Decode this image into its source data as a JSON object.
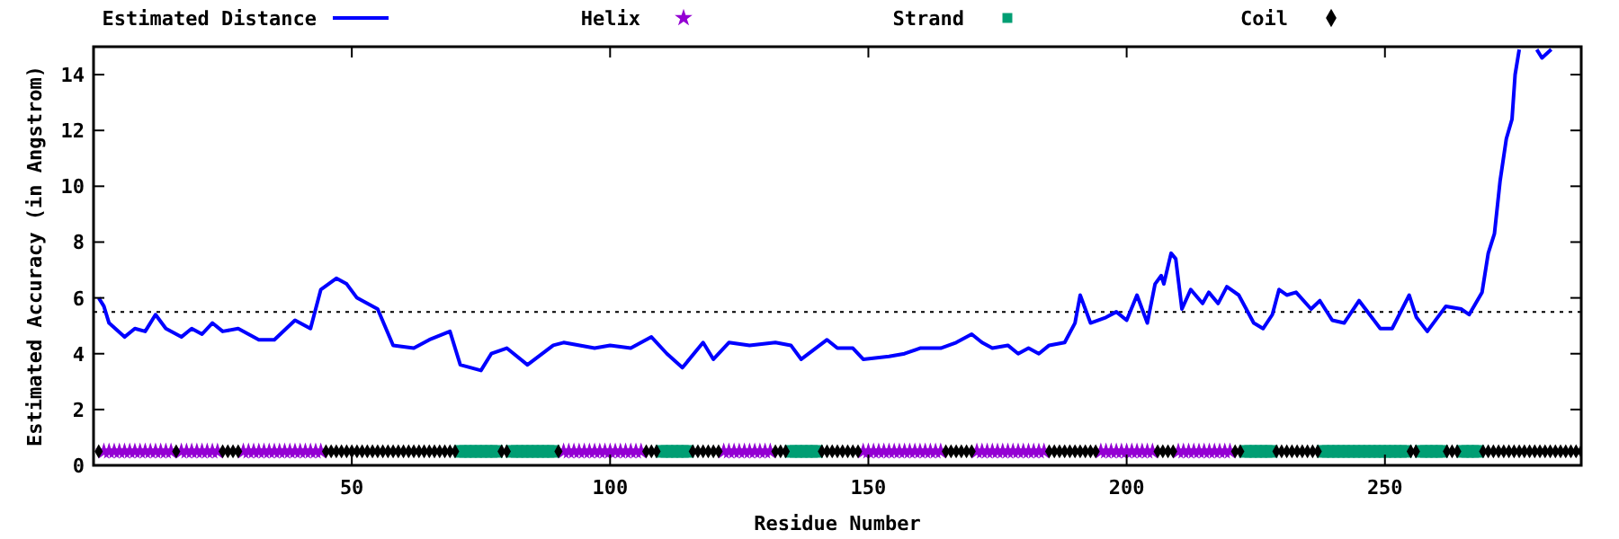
{
  "chart_data": {
    "type": "line",
    "xlabel": "Residue Number",
    "ylabel": "Estimated Accuracy (in Angstrom)",
    "xlim": [
      0,
      288
    ],
    "ylim": [
      0,
      15
    ],
    "xticks": [
      50,
      100,
      150,
      200,
      250
    ],
    "yticks": [
      0,
      2,
      4,
      6,
      8,
      10,
      12,
      14
    ],
    "grid": false,
    "legend": "top",
    "ref_lines": [
      {
        "axis": "y",
        "value": 5.5,
        "color": "#000000",
        "line_style": "dotted"
      }
    ],
    "series": [
      {
        "name": "Estimated Distance",
        "color": "#0000ff",
        "marker": "none",
        "line_style": "solid",
        "x": [
          1,
          2,
          3,
          6,
          8,
          10,
          12,
          14,
          17,
          19,
          21,
          23,
          25,
          28,
          32,
          35,
          39,
          42,
          44,
          47,
          49,
          51,
          55,
          58,
          62,
          65,
          69,
          71,
          75,
          77,
          80,
          84,
          89,
          91,
          97,
          100,
          104,
          108,
          111,
          114,
          118,
          120,
          123,
          127,
          132,
          135,
          137,
          142,
          144,
          147,
          149,
          154,
          157,
          160,
          164,
          167,
          170,
          172,
          174,
          177,
          179,
          181,
          183,
          185,
          188,
          190,
          191,
          193,
          196,
          198,
          200,
          202,
          204,
          205.5,
          206.7,
          207.2,
          208.6,
          209.5,
          210.7,
          212.4,
          214.7,
          215.9,
          217.7,
          219.4,
          221.7,
          224.6,
          226.4,
          228.2,
          229.5,
          231,
          232.8,
          235.7,
          237.4,
          239.8,
          242.1,
          245,
          249.1,
          251.4,
          254.7,
          256.1,
          258.2,
          261.8,
          264.8,
          266.3,
          268.8,
          270,
          271.2,
          272.3,
          273.5,
          274.6,
          275.2,
          276,
          277,
          279.4,
          280.4,
          282.2
        ],
        "values": [
          6.0,
          5.7,
          5.1,
          4.6,
          4.9,
          4.8,
          5.4,
          4.9,
          4.6,
          4.9,
          4.7,
          5.1,
          4.8,
          4.9,
          4.5,
          4.5,
          5.2,
          4.9,
          6.3,
          6.7,
          6.5,
          6.0,
          5.6,
          4.3,
          4.2,
          4.5,
          4.8,
          3.6,
          3.4,
          4.0,
          4.2,
          3.6,
          4.3,
          4.4,
          4.2,
          4.3,
          4.2,
          4.6,
          4.0,
          3.5,
          4.4,
          3.8,
          4.4,
          4.3,
          4.4,
          4.3,
          3.8,
          4.5,
          4.2,
          4.2,
          3.8,
          3.9,
          4.0,
          4.2,
          4.2,
          4.4,
          4.7,
          4.4,
          4.2,
          4.3,
          4.0,
          4.2,
          4.0,
          4.3,
          4.4,
          5.1,
          6.1,
          5.1,
          5.3,
          5.5,
          5.2,
          6.1,
          5.1,
          6.5,
          6.8,
          6.5,
          7.6,
          7.4,
          5.6,
          6.3,
          5.8,
          6.2,
          5.8,
          6.4,
          6.1,
          5.1,
          4.9,
          5.4,
          6.3,
          6.1,
          6.2,
          5.6,
          5.9,
          5.2,
          5.1,
          5.9,
          4.9,
          4.9,
          6.1,
          5.3,
          4.8,
          5.7,
          5.6,
          5.4,
          6.2,
          7.6,
          8.3,
          10.2,
          11.7,
          12.4,
          14.0,
          14.9,
          null,
          14.9,
          14.6,
          14.9
        ]
      },
      {
        "name": "Helix",
        "type": "scatter",
        "color": "#9400d3",
        "marker": "star",
        "x": [
          2,
          3,
          4,
          5,
          6,
          7,
          8,
          9,
          10,
          11,
          12,
          13,
          14,
          15,
          17,
          18,
          19,
          20,
          21,
          22,
          23,
          24,
          29,
          30,
          31,
          32,
          33,
          34,
          35,
          36,
          37,
          38,
          39,
          40,
          41,
          42,
          43,
          44,
          91,
          92,
          93,
          94,
          95,
          96,
          97,
          98,
          99,
          100,
          101,
          102,
          103,
          104,
          105,
          106,
          122,
          123,
          124,
          125,
          126,
          127,
          128,
          129,
          130,
          131,
          149,
          150,
          151,
          152,
          153,
          154,
          155,
          156,
          157,
          158,
          159,
          160,
          161,
          162,
          163,
          164,
          171,
          172,
          173,
          174,
          175,
          176,
          177,
          178,
          179,
          180,
          181,
          182,
          183,
          184,
          195,
          196,
          197,
          198,
          199,
          200,
          201,
          202,
          203,
          204,
          205,
          210,
          211,
          212,
          213,
          214,
          215,
          216,
          217,
          218,
          219,
          220
        ],
        "values": [
          0.5,
          0.5,
          0.5,
          0.5,
          0.5,
          0.5,
          0.5,
          0.5,
          0.5,
          0.5,
          0.5,
          0.5,
          0.5,
          0.5,
          0.5,
          0.5,
          0.5,
          0.5,
          0.5,
          0.5,
          0.5,
          0.5,
          0.5,
          0.5,
          0.5,
          0.5,
          0.5,
          0.5,
          0.5,
          0.5,
          0.5,
          0.5,
          0.5,
          0.5,
          0.5,
          0.5,
          0.5,
          0.5,
          0.5,
          0.5,
          0.5,
          0.5,
          0.5,
          0.5,
          0.5,
          0.5,
          0.5,
          0.5,
          0.5,
          0.5,
          0.5,
          0.5,
          0.5,
          0.5,
          0.5,
          0.5,
          0.5,
          0.5,
          0.5,
          0.5,
          0.5,
          0.5,
          0.5,
          0.5,
          0.5,
          0.5,
          0.5,
          0.5,
          0.5,
          0.5,
          0.5,
          0.5,
          0.5,
          0.5,
          0.5,
          0.5,
          0.5,
          0.5,
          0.5,
          0.5,
          0.5,
          0.5,
          0.5,
          0.5,
          0.5,
          0.5,
          0.5,
          0.5,
          0.5,
          0.5,
          0.5,
          0.5,
          0.5,
          0.5,
          0.5,
          0.5,
          0.5,
          0.5,
          0.5,
          0.5,
          0.5,
          0.5,
          0.5,
          0.5,
          0.5,
          0.5,
          0.5,
          0.5,
          0.5,
          0.5,
          0.5,
          0.5,
          0.5,
          0.5,
          0.5,
          0.5
        ]
      },
      {
        "name": "Strand",
        "type": "scatter",
        "color": "#009e73",
        "marker": "square",
        "x": [
          71,
          72,
          73,
          74,
          75,
          76,
          77,
          78,
          81,
          82,
          83,
          84,
          85,
          86,
          87,
          88,
          89,
          110,
          111,
          112,
          113,
          114,
          115,
          135,
          136,
          137,
          138,
          139,
          140,
          223,
          224,
          225,
          226,
          227,
          228,
          238,
          239,
          240,
          241,
          242,
          243,
          244,
          245,
          246,
          247,
          248,
          249,
          250,
          251,
          252,
          253,
          254,
          257,
          258,
          259,
          260,
          261,
          265,
          266,
          267,
          268
        ],
        "values": [
          0.5,
          0.5,
          0.5,
          0.5,
          0.5,
          0.5,
          0.5,
          0.5,
          0.5,
          0.5,
          0.5,
          0.5,
          0.5,
          0.5,
          0.5,
          0.5,
          0.5,
          0.5,
          0.5,
          0.5,
          0.5,
          0.5,
          0.5,
          0.5,
          0.5,
          0.5,
          0.5,
          0.5,
          0.5,
          0.5,
          0.5,
          0.5,
          0.5,
          0.5,
          0.5,
          0.5,
          0.5,
          0.5,
          0.5,
          0.5,
          0.5,
          0.5,
          0.5,
          0.5,
          0.5,
          0.5,
          0.5,
          0.5,
          0.5,
          0.5,
          0.5,
          0.5,
          0.5,
          0.5,
          0.5,
          0.5,
          0.5,
          0.5,
          0.5,
          0.5,
          0.5
        ]
      },
      {
        "name": "Coil",
        "type": "scatter",
        "color": "#000000",
        "marker": "diamond",
        "x": [
          1,
          16,
          25,
          26,
          27,
          28,
          45,
          46,
          47,
          48,
          49,
          50,
          51,
          52,
          53,
          54,
          55,
          56,
          57,
          58,
          59,
          60,
          61,
          62,
          63,
          64,
          65,
          66,
          67,
          68,
          69,
          70,
          79,
          80,
          90,
          107,
          108,
          109,
          116,
          117,
          118,
          119,
          120,
          121,
          132,
          133,
          134,
          141,
          142,
          143,
          144,
          145,
          146,
          147,
          148,
          165,
          166,
          167,
          168,
          169,
          170,
          185,
          186,
          187,
          188,
          189,
          190,
          191,
          192,
          193,
          194,
          206,
          207,
          208,
          209,
          221,
          222,
          229,
          230,
          231,
          232,
          233,
          234,
          235,
          236,
          237,
          255,
          256,
          262,
          263,
          264,
          269,
          270,
          271,
          272,
          273,
          274,
          275,
          276,
          277,
          278,
          279,
          280,
          281,
          282,
          283,
          284,
          285,
          286,
          287,
          288
        ],
        "values": [
          0.5,
          0.5,
          0.5,
          0.5,
          0.5,
          0.5,
          0.5,
          0.5,
          0.5,
          0.5,
          0.5,
          0.5,
          0.5,
          0.5,
          0.5,
          0.5,
          0.5,
          0.5,
          0.5,
          0.5,
          0.5,
          0.5,
          0.5,
          0.5,
          0.5,
          0.5,
          0.5,
          0.5,
          0.5,
          0.5,
          0.5,
          0.5,
          0.5,
          0.5,
          0.5,
          0.5,
          0.5,
          0.5,
          0.5,
          0.5,
          0.5,
          0.5,
          0.5,
          0.5,
          0.5,
          0.5,
          0.5,
          0.5,
          0.5,
          0.5,
          0.5,
          0.5,
          0.5,
          0.5,
          0.5,
          0.5,
          0.5,
          0.5,
          0.5,
          0.5,
          0.5,
          0.5,
          0.5,
          0.5,
          0.5,
          0.5,
          0.5,
          0.5,
          0.5,
          0.5,
          0.5,
          0.5,
          0.5,
          0.5,
          0.5,
          0.5,
          0.5,
          0.5,
          0.5,
          0.5,
          0.5,
          0.5,
          0.5,
          0.5,
          0.5,
          0.5,
          0.5,
          0.5,
          0.5,
          0.5,
          0.5,
          0.5,
          0.5,
          0.5,
          0.5,
          0.5,
          0.5,
          0.5,
          0.5,
          0.5,
          0.5,
          0.5,
          0.5,
          0.5,
          0.5,
          0.5,
          0.5,
          0.5,
          0.5,
          0.5,
          0.5
        ]
      }
    ]
  }
}
